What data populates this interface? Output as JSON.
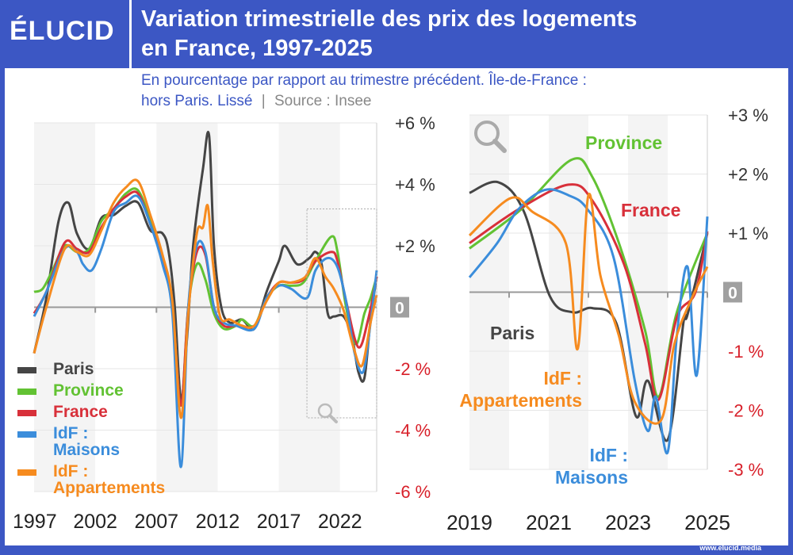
{
  "header": {
    "logo": "ÉLUCID",
    "title_line1": "Variation trimestrielle des prix des logements",
    "title_line2": "en France, 1997-2025",
    "subtitle_line1": "En pourcentage par rapport au trimestre précédent. Île-de-France :",
    "subtitle_line2": "hors Paris. Lissé",
    "separator": "|",
    "source": "Source : Insee"
  },
  "footer": {
    "url": "www.elucid.media"
  },
  "colors": {
    "Paris": "#454545",
    "Province": "#62c233",
    "France": "#d8303a",
    "IdF : Maisons": "#3b8ddb",
    "IdF : Appartements": "#f68b1f",
    "brand": "#3c57c4"
  },
  "chart_data": [
    {
      "type": "line",
      "title": "",
      "xlabel": "",
      "ylabel": "",
      "xlim": [
        1997,
        2025
      ],
      "ylim": [
        -6,
        6
      ],
      "grid": true,
      "legend": "bottom-left",
      "xticks": [
        "1997",
        "2002",
        "2007",
        "2012",
        "2017",
        "2022"
      ],
      "yticks": [
        "+6 %",
        "+4 %",
        "+2 %",
        "0",
        "-2 %",
        "-4 %",
        "-6 %"
      ],
      "series": [
        {
          "name": "Paris",
          "points": [
            [
              1997,
              -1.5
            ],
            [
              1998,
              0.3
            ],
            [
              1999,
              2.8
            ],
            [
              1999.8,
              3.4
            ],
            [
              2000.5,
              2.4
            ],
            [
              2001.5,
              1.9
            ],
            [
              2002.5,
              2.9
            ],
            [
              2003.5,
              3.0
            ],
            [
              2004.5,
              3.3
            ],
            [
              2005.5,
              3.4
            ],
            [
              2006.5,
              2.5
            ],
            [
              2007.5,
              2.4
            ],
            [
              2008,
              1.8
            ],
            [
              2008.5,
              0
            ],
            [
              2009,
              -3
            ],
            [
              2009.5,
              -1
            ],
            [
              2010,
              2
            ],
            [
              2010.8,
              4.5
            ],
            [
              2011.3,
              5.6
            ],
            [
              2011.7,
              2
            ],
            [
              2012.3,
              0
            ],
            [
              2013,
              -0.5
            ],
            [
              2014,
              -0.4
            ],
            [
              2015,
              -0.7
            ],
            [
              2016,
              0.5
            ],
            [
              2017,
              1.5
            ],
            [
              2017.5,
              2.0
            ],
            [
              2018.5,
              1.4
            ],
            [
              2019.5,
              1.6
            ],
            [
              2020,
              1.8
            ],
            [
              2020.5,
              1.4
            ],
            [
              2021,
              -0.2
            ],
            [
              2021.5,
              -0.3
            ],
            [
              2022.3,
              -0.3
            ],
            [
              2023,
              -1
            ],
            [
              2023.5,
              -2.1
            ],
            [
              2024,
              -2.3
            ],
            [
              2024.5,
              -0.4
            ],
            [
              2025,
              1.0
            ]
          ]
        },
        {
          "name": "Province",
          "points": [
            [
              1997,
              0.5
            ],
            [
              1997.7,
              0.6
            ],
            [
              1998.5,
              1.2
            ],
            [
              1999.5,
              2.0
            ],
            [
              2000.5,
              1.8
            ],
            [
              2001.5,
              1.9
            ],
            [
              2002.5,
              2.8
            ],
            [
              2003.5,
              3.2
            ],
            [
              2004.5,
              3.7
            ],
            [
              2005.5,
              3.8
            ],
            [
              2006.5,
              2.8
            ],
            [
              2007.5,
              1.5
            ],
            [
              2008.3,
              0
            ],
            [
              2009,
              -3.2
            ],
            [
              2009.6,
              0
            ],
            [
              2010.3,
              1.4
            ],
            [
              2011,
              0.9
            ],
            [
              2011.7,
              -0.2
            ],
            [
              2012.5,
              -0.7
            ],
            [
              2013.5,
              -0.6
            ],
            [
              2014,
              -0.4
            ],
            [
              2015,
              -0.6
            ],
            [
              2016,
              0.3
            ],
            [
              2017,
              0.7
            ],
            [
              2018,
              0.7
            ],
            [
              2019,
              0.8
            ],
            [
              2020,
              1.5
            ],
            [
              2021.3,
              2.3
            ],
            [
              2021.8,
              1.8
            ],
            [
              2022.5,
              0
            ],
            [
              2023.3,
              -1.2
            ],
            [
              2024,
              -0.2
            ],
            [
              2024.5,
              0.3
            ],
            [
              2025,
              1.0
            ]
          ]
        },
        {
          "name": "France",
          "points": [
            [
              1997,
              -0.2
            ],
            [
              1998,
              0.5
            ],
            [
              1999.5,
              2.1
            ],
            [
              2000.5,
              1.9
            ],
            [
              2001.5,
              1.8
            ],
            [
              2002.5,
              2.6
            ],
            [
              2003.5,
              3.2
            ],
            [
              2004.5,
              3.6
            ],
            [
              2005.5,
              3.7
            ],
            [
              2006.5,
              2.7
            ],
            [
              2007.5,
              1.5
            ],
            [
              2008.3,
              0
            ],
            [
              2009,
              -3.2
            ],
            [
              2009.6,
              0
            ],
            [
              2010.3,
              1.8
            ],
            [
              2011,
              1.7
            ],
            [
              2011.7,
              0
            ],
            [
              2012.5,
              -0.6
            ],
            [
              2013.5,
              -0.6
            ],
            [
              2015,
              -0.6
            ],
            [
              2016,
              0.3
            ],
            [
              2017,
              0.8
            ],
            [
              2018,
              0.8
            ],
            [
              2019,
              0.9
            ],
            [
              2020,
              1.5
            ],
            [
              2021.3,
              1.8
            ],
            [
              2021.8,
              1.5
            ],
            [
              2022.5,
              0.2
            ],
            [
              2023.5,
              -1.3
            ],
            [
              2024.3,
              -0.4
            ],
            [
              2025,
              1.0
            ]
          ]
        },
        {
          "name": "IdF : Maisons",
          "points": [
            [
              1997,
              -0.3
            ],
            [
              1998,
              0.5
            ],
            [
              1999.5,
              1.9
            ],
            [
              2000.5,
              1.8
            ],
            [
              2001,
              1.4
            ],
            [
              2001.7,
              1.2
            ],
            [
              2002.5,
              1.9
            ],
            [
              2003.5,
              3.1
            ],
            [
              2004.5,
              3.4
            ],
            [
              2005.5,
              3.6
            ],
            [
              2006.5,
              2.7
            ],
            [
              2007.5,
              1.4
            ],
            [
              2008.3,
              -0.2
            ],
            [
              2009,
              -5.2
            ],
            [
              2009.6,
              0
            ],
            [
              2010.3,
              2.0
            ],
            [
              2011,
              1.8
            ],
            [
              2011.7,
              0
            ],
            [
              2012.5,
              -0.5
            ],
            [
              2013.5,
              -0.6
            ],
            [
              2015,
              -0.7
            ],
            [
              2016,
              0.3
            ],
            [
              2017,
              0.7
            ],
            [
              2018,
              0.6
            ],
            [
              2019.3,
              0.3
            ],
            [
              2020,
              1.2
            ],
            [
              2021,
              1.6
            ],
            [
              2021.8,
              1.3
            ],
            [
              2022.5,
              0.2
            ],
            [
              2023.2,
              -1.5
            ],
            [
              2023.9,
              -2.1
            ],
            [
              2024.5,
              -0.5
            ],
            [
              2025,
              1.2
            ]
          ]
        },
        {
          "name": "IdF : Appartements",
          "points": [
            [
              1997,
              -1.5
            ],
            [
              1998,
              0
            ],
            [
              1999.5,
              1.9
            ],
            [
              2000.5,
              1.8
            ],
            [
              2001.5,
              1.7
            ],
            [
              2002.5,
              2.5
            ],
            [
              2003.5,
              3.4
            ],
            [
              2004.5,
              3.9
            ],
            [
              2005.5,
              4.1
            ],
            [
              2006.5,
              3.0
            ],
            [
              2007.5,
              1.7
            ],
            [
              2008.3,
              0.2
            ],
            [
              2009,
              -3.6
            ],
            [
              2009.6,
              -0.2
            ],
            [
              2010.3,
              2.4
            ],
            [
              2010.8,
              2.6
            ],
            [
              2011.2,
              3.3
            ],
            [
              2011.6,
              1.5
            ],
            [
              2012.2,
              -0.3
            ],
            [
              2013,
              -0.4
            ],
            [
              2014,
              -0.6
            ],
            [
              2015,
              -0.6
            ],
            [
              2016,
              0.2
            ],
            [
              2017,
              0.8
            ],
            [
              2018,
              0.8
            ],
            [
              2019.2,
              1.0
            ],
            [
              2020,
              1.6
            ],
            [
              2020.8,
              1.0
            ],
            [
              2021.5,
              0.6
            ],
            [
              2022.3,
              -0.1
            ],
            [
              2023.1,
              -1.3
            ],
            [
              2023.8,
              -1.9
            ],
            [
              2024.5,
              -0.5
            ],
            [
              2025,
              0.4
            ]
          ]
        }
      ]
    },
    {
      "type": "line",
      "title": "",
      "xlabel": "",
      "ylabel": "",
      "xlim": [
        2019,
        2025
      ],
      "ylim": [
        -3,
        3
      ],
      "grid": true,
      "legend": "inline-labels",
      "xticks": [
        "2019",
        "2021",
        "2023",
        "2025"
      ],
      "yticks": [
        "+3 %",
        "+2 %",
        "+1 %",
        "0",
        "-1 %",
        "-2 %",
        "-3 %"
      ],
      "series": [
        {
          "name": "Paris",
          "label": "Paris",
          "points": [
            [
              2019,
              1.68
            ],
            [
              2019.73,
              1.86
            ],
            [
              2020.37,
              1.37
            ],
            [
              2021.03,
              -0.07
            ],
            [
              2021.6,
              -0.34
            ],
            [
              2022.1,
              -0.27
            ],
            [
              2022.7,
              -0.52
            ],
            [
              2023.2,
              -2.1
            ],
            [
              2023.5,
              -1.5
            ],
            [
              2024,
              -2.5
            ],
            [
              2024.4,
              -0.5
            ],
            [
              2024.5,
              -0.38
            ],
            [
              2025,
              1.0
            ]
          ]
        },
        {
          "name": "Province",
          "label": "Province",
          "points": [
            [
              2019,
              0.74
            ],
            [
              2020.3,
              1.4
            ],
            [
              2021.57,
              2.24
            ],
            [
              2022.1,
              1.95
            ],
            [
              2022.77,
              0.83
            ],
            [
              2023.43,
              -0.65
            ],
            [
              2023.77,
              -1.77
            ],
            [
              2024.23,
              -0.34
            ],
            [
              2025,
              1.0
            ]
          ]
        },
        {
          "name": "France",
          "label": "France",
          "points": [
            [
              2019,
              0.83
            ],
            [
              2020.23,
              1.4
            ],
            [
              2021.5,
              1.82
            ],
            [
              2022.1,
              1.55
            ],
            [
              2022.9,
              0.47
            ],
            [
              2023.43,
              -0.87
            ],
            [
              2023.77,
              -1.82
            ],
            [
              2024.23,
              -0.43
            ],
            [
              2024.7,
              0
            ],
            [
              2025,
              1.03
            ]
          ]
        },
        {
          "name": "IdF : Maisons",
          "label_line1": "IdF :",
          "label_line2": "Maisons",
          "points": [
            [
              2019,
              0.25
            ],
            [
              2019.7,
              0.83
            ],
            [
              2020.23,
              1.4
            ],
            [
              2020.9,
              1.73
            ],
            [
              2021.5,
              1.64
            ],
            [
              2021.97,
              1.41
            ],
            [
              2022.63,
              0.6
            ],
            [
              2023.17,
              -1.5
            ],
            [
              2023.5,
              -2.35
            ],
            [
              2023.7,
              -1.77
            ],
            [
              2024,
              -2.71
            ],
            [
              2024.23,
              -0.74
            ],
            [
              2024.5,
              0.43
            ],
            [
              2024.73,
              -1.41
            ],
            [
              2025,
              1.28
            ]
          ]
        },
        {
          "name": "IdF : Appartements",
          "label_line1": "IdF :",
          "label_line2": "Appartements",
          "points": [
            [
              2019,
              0.96
            ],
            [
              2020.03,
              1.59
            ],
            [
              2020.57,
              1.37
            ],
            [
              2021.43,
              0.83
            ],
            [
              2021.73,
              -0.96
            ],
            [
              2022,
              1.64
            ],
            [
              2022.3,
              0.29
            ],
            [
              2022.77,
              -0.74
            ],
            [
              2023.17,
              -1.86
            ],
            [
              2023.83,
              -2.17
            ],
            [
              2024.17,
              -0.87
            ],
            [
              2024.63,
              -0.07
            ],
            [
              2025,
              0.43
            ]
          ]
        }
      ]
    }
  ]
}
